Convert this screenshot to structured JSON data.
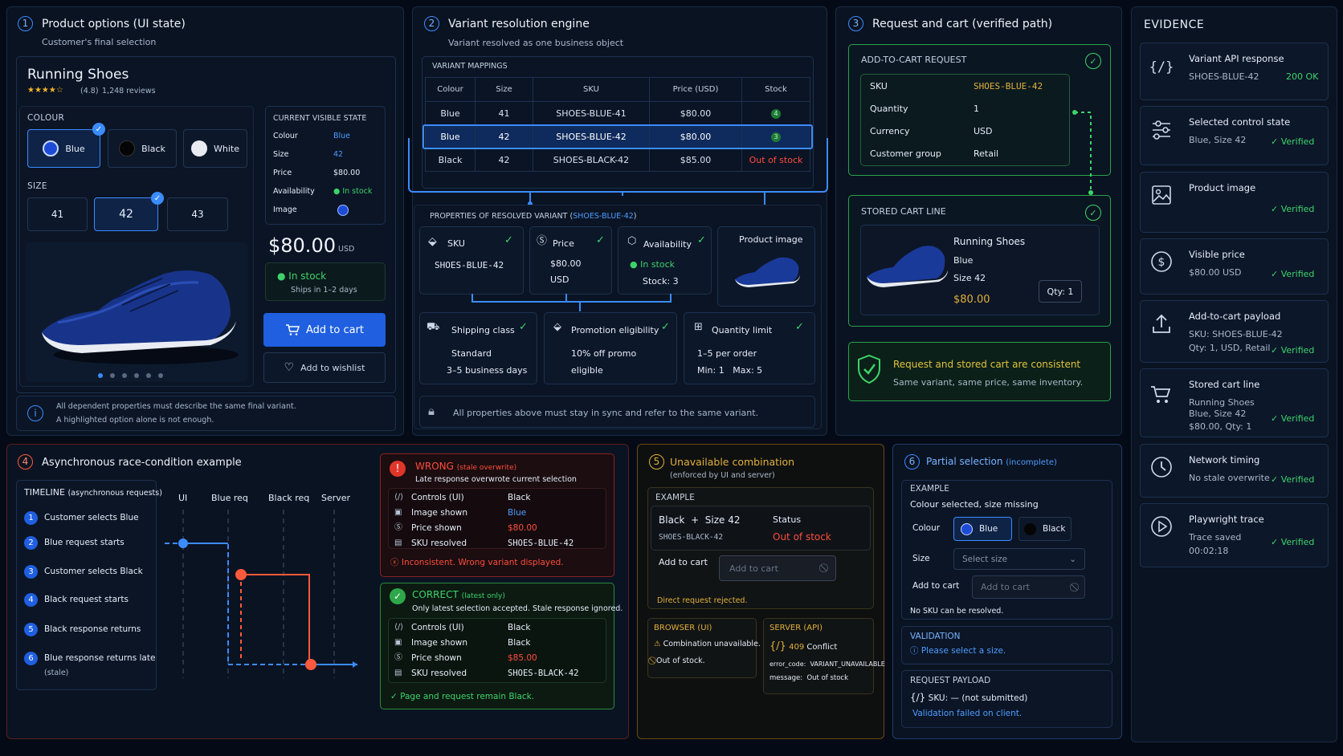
{
  "s1": {
    "num": "1",
    "title": "Product options (UI state)",
    "subtitle": "Customer's final selection",
    "product": "Running Shoes",
    "rating": "(4.8)",
    "reviews": "1,248 reviews",
    "colour_label": "COLOUR",
    "colours": [
      "Blue",
      "Black",
      "White"
    ],
    "size_label": "SIZE",
    "sizes": [
      "41",
      "42",
      "43"
    ],
    "cvs_title": "CURRENT VISIBLE STATE",
    "cvs": [
      {
        "k": "Colour",
        "v": "Blue"
      },
      {
        "k": "Size",
        "v": "42"
      },
      {
        "k": "Price",
        "v": "$80.00"
      },
      {
        "k": "Availability",
        "v": "In stock"
      },
      {
        "k": "Image",
        "v": ""
      }
    ],
    "price": "$80.00",
    "currency": "USD",
    "stock": "In stock",
    "ships": "Ships in 1–2 days",
    "add_to_cart": "Add to cart",
    "wishlist": "Add to wishlist",
    "note1": "All dependent properties must describe the same final variant.",
    "note2": "A highlighted option alone is not enough."
  },
  "s2": {
    "num": "2",
    "title": "Variant resolution engine",
    "subtitle": "Variant resolved as one business object",
    "mappings_label": "VARIANT MAPPINGS",
    "headers": [
      "Colour",
      "Size",
      "SKU",
      "Price (USD)",
      "Stock"
    ],
    "rows": [
      [
        "Blue",
        "41",
        "SHOES-BLUE-41",
        "$80.00",
        "4"
      ],
      [
        "Blue",
        "42",
        "SHOES-BLUE-42",
        "$80.00",
        "3"
      ],
      [
        "Black",
        "42",
        "SHOES-BLACK-42",
        "$85.00",
        "Out of stock"
      ]
    ],
    "props_label": "PROPERTIES OF RESOLVED VARIANT (",
    "props_sku": "SHOES-BLUE-42",
    "props_close": ")",
    "sku_title": "SKU",
    "sku_val": "SHOES-BLUE-42",
    "price_title": "Price",
    "price_val": "$80.00",
    "price_cur": "USD",
    "avail_title": "Availability",
    "avail_val": "In stock",
    "avail_stock": "Stock: 3",
    "image_title": "Product image",
    "ship_title": "Shipping class",
    "ship_v1": "Standard",
    "ship_v2": "3–5 business days",
    "promo_title": "Promotion eligibility",
    "promo_v1": "10% off promo",
    "promo_v2": "eligible",
    "qty_title": "Quantity limit",
    "qty_v1": "1–5 per order",
    "qty_v2": "Min: 1   Max: 5",
    "note": "All properties above must stay in sync and refer to the same variant."
  },
  "s3": {
    "num": "3",
    "title": "Request and cart (verified path)",
    "req_label": "ADD-TO-CART REQUEST",
    "req": [
      {
        "k": "SKU",
        "v": "SHOES-BLUE-42"
      },
      {
        "k": "Quantity",
        "v": "1"
      },
      {
        "k": "Currency",
        "v": "USD"
      },
      {
        "k": "Customer group",
        "v": "Retail"
      }
    ],
    "cart_label": "STORED CART LINE",
    "cart_name": "Running Shoes",
    "cart_colour": "Blue",
    "cart_size": "Size 42",
    "cart_price": "$80.00",
    "cart_qty": "Qty: 1",
    "ok_title": "Request and stored cart are consistent",
    "ok_sub": "Same variant, same price, same inventory."
  },
  "evidence": {
    "title": "EVIDENCE",
    "items": [
      {
        "icon": "code-icon",
        "t": "Variant API response",
        "l1": "SHOES-BLUE-42",
        "l2": "",
        "status": "200 OK"
      },
      {
        "icon": "sliders-icon",
        "t": "Selected control state",
        "l1": "Blue, Size 42",
        "l2": "",
        "status": "Verified"
      },
      {
        "icon": "image-icon",
        "t": "Product image",
        "l1": "",
        "l2": "",
        "status": "Verified"
      },
      {
        "icon": "dollar-icon",
        "t": "Visible price",
        "l1": "$80.00 USD",
        "l2": "",
        "status": "Verified"
      },
      {
        "icon": "upload-icon",
        "t": "Add-to-cart payload",
        "l1": "SKU: SHOES-BLUE-42",
        "l2": "Qty: 1, USD, Retail",
        "status": "Verified"
      },
      {
        "icon": "cart-icon",
        "t": "Stored cart line",
        "l1": "Running Shoes",
        "l2": "Blue, Size 42",
        "l3": "$80.00, Qty: 1",
        "status": "Verified"
      },
      {
        "icon": "clock-icon",
        "t": "Network timing",
        "l1": "No stale overwrite",
        "l2": "",
        "status": "Verified"
      },
      {
        "icon": "play-icon",
        "t": "Playwright trace",
        "l1": "Trace saved",
        "l2": "00:02:18",
        "status": "Verified"
      }
    ]
  },
  "s4": {
    "num": "4",
    "title": "Asynchronous race-condition example",
    "timeline_label": "TIMELINE",
    "timeline_sub": "(asynchronous requests)",
    "steps": [
      "Customer selects Blue",
      "Blue request starts",
      "Customer selects Black",
      "Black request starts",
      "Black response returns",
      "Blue response returns late",
      "(stale)"
    ],
    "lanes": [
      "UI",
      "Blue req",
      "Black req",
      "Server"
    ],
    "wrong_title": "WRONG",
    "wrong_tag": "(stale overwrite)",
    "wrong_sub": "Late response overwrote current selection",
    "wrong_rows": [
      {
        "k": "Controls (UI)",
        "v": "Black"
      },
      {
        "k": "Image shown",
        "v": "Blue"
      },
      {
        "k": "Price shown",
        "v": "$80.00"
      },
      {
        "k": "SKU resolved",
        "v": "SHOES-BLUE-42"
      }
    ],
    "wrong_foot": "Inconsistent. Wrong variant displayed.",
    "right_title": "CORRECT",
    "right_tag": "(latest only)",
    "right_sub": "Only latest selection accepted. Stale response ignored.",
    "right_rows": [
      {
        "k": "Controls (UI)",
        "v": "Black"
      },
      {
        "k": "Image shown",
        "v": "Black"
      },
      {
        "k": "Price shown",
        "v": "$85.00"
      },
      {
        "k": "SKU resolved",
        "v": "SHOES-BLACK-42"
      }
    ],
    "right_foot": "Page and request remain Black."
  },
  "s5": {
    "num": "5",
    "title": "Unavailable combination",
    "subtitle": "(enforced by UI and server)",
    "example": "EXAMPLE",
    "combo": "Black  +  Size 42",
    "combo_sku": "SHOES-BLACK-42",
    "status_label": "Status",
    "status_val": "Out of stock",
    "add_label": "Add to cart",
    "add_btn": "Add to cart",
    "rejected": "Direct request rejected.",
    "browser_label": "BROWSER (UI)",
    "b1": "Combination unavailable.",
    "b2": "Out of stock.",
    "server_label": "SERVER (API)",
    "code": "409",
    "conflict": "Conflict",
    "err": "error_code:  VARIANT_UNAVAILABLE",
    "msg": "message:  Out of stock"
  },
  "s6": {
    "num": "6",
    "title": "Partial selection",
    "tag": "(incomplete)",
    "example": "EXAMPLE",
    "example_sub": "Colour selected, size missing",
    "colour_label": "Colour",
    "c1": "Blue",
    "c2": "Black",
    "size_label": "Size",
    "size_placeholder": "Select size",
    "add_label": "Add to cart",
    "add_btn": "Add to cart",
    "no_sku": "No SKU can be resolved.",
    "validation_label": "VALIDATION",
    "validation_msg": "Please select a size.",
    "payload_label": "REQUEST PAYLOAD",
    "payload": "SKU: — (not submitted)",
    "payload_fail": "Validation failed on client."
  },
  "colors": {
    "accent": "#3b8cff",
    "ok": "#3ed36a",
    "bad": "#ff4c3b",
    "warn": "#e2b03d"
  }
}
